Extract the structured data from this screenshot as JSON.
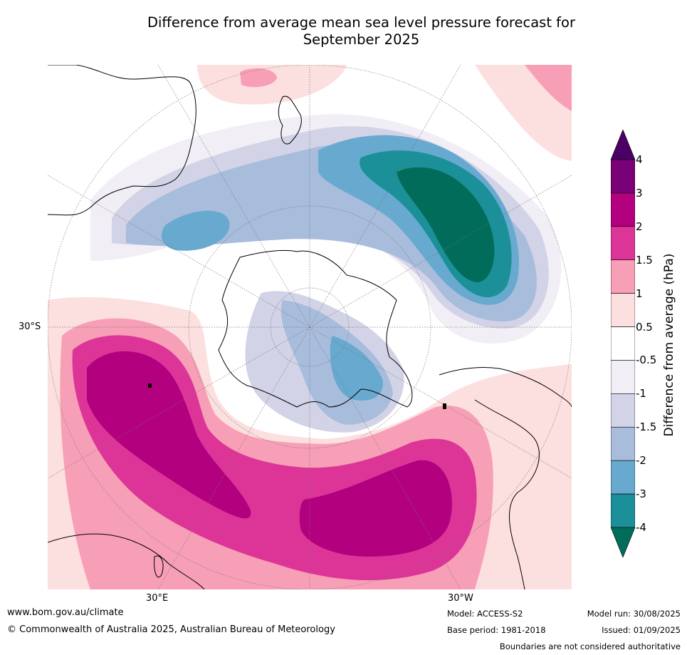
{
  "title_line1": "Difference from average mean sea level pressure forecast for",
  "title_line2": "September 2025",
  "labels": {
    "lat_30s": "30°S",
    "lon_30e": "30°E",
    "lon_30w": "30°W"
  },
  "colorbar": {
    "title": "Difference from average (hPa)",
    "ticks": [
      "4",
      "3",
      "2",
      "1.5",
      "1",
      "0.5",
      "-0.5",
      "-1",
      "-1.5",
      "-2",
      "-3",
      "-4"
    ],
    "colors_top_to_bottom": [
      "#4b0066",
      "#7a0077",
      "#b3007f",
      "#dc3597",
      "#f79fb6",
      "#fcdfdf",
      "#ffffff",
      "#f2eef5",
      "#d2d3e6",
      "#a8bcdb",
      "#67a9cf",
      "#1c9099",
      "#016c59"
    ]
  },
  "footer": {
    "url": "www.bom.gov.au/climate",
    "copyright": "© Commonwealth of Australia 2025, Australian Bureau of Meteorology",
    "model": "Model: ACCESS-S2",
    "base_period": "Base period: 1981-2018",
    "model_run": "Model run: 30/08/2025",
    "issued": "Issued: 01/09/2025",
    "disclaimer": "Boundaries are not considered authoritative"
  }
}
